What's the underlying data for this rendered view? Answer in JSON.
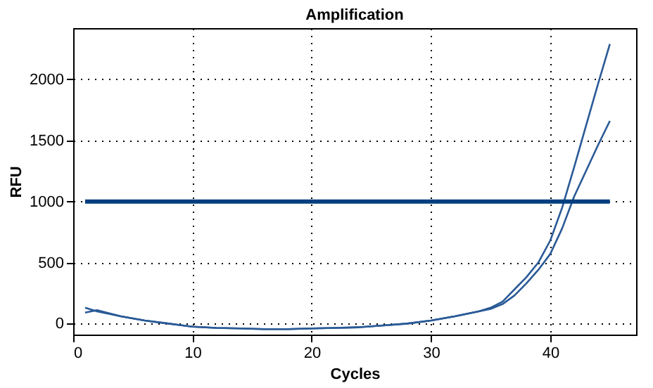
{
  "chart_data": {
    "type": "line",
    "title": "Amplification",
    "xlabel": "Cycles",
    "ylabel": "RFU",
    "xlim": [
      0,
      47.2
    ],
    "xticks": [
      0,
      10,
      20,
      30,
      40
    ],
    "ylim": [
      -90,
      2420
    ],
    "yticks": [
      0,
      500,
      1000,
      1500,
      2000
    ],
    "grid": true,
    "series": [
      {
        "color": "#2a5a96",
        "x": [
          1,
          2,
          4,
          6,
          8,
          10,
          12,
          14,
          16,
          18,
          20,
          22,
          24,
          26,
          28,
          30,
          32,
          34,
          35,
          36,
          37,
          38,
          39,
          40,
          41,
          42,
          43,
          44,
          45
        ],
        "values": [
          130,
          100,
          60,
          25,
          0,
          -25,
          -35,
          -40,
          -45,
          -45,
          -40,
          -35,
          -30,
          -15,
          0,
          25,
          60,
          100,
          130,
          180,
          280,
          380,
          500,
          680,
          950,
          1280,
          1620,
          1960,
          2290
        ]
      },
      {
        "color": "#2a5a96",
        "x": [
          1,
          2,
          4,
          6,
          8,
          10,
          12,
          14,
          16,
          18,
          20,
          22,
          24,
          26,
          28,
          30,
          32,
          34,
          35,
          36,
          37,
          38,
          39,
          40,
          41,
          42,
          43,
          44,
          45
        ],
        "values": [
          90,
          110,
          60,
          25,
          0,
          -25,
          -35,
          -40,
          -45,
          -45,
          -40,
          -35,
          -30,
          -15,
          0,
          25,
          60,
          100,
          120,
          160,
          230,
          330,
          440,
          570,
          780,
          1040,
          1250,
          1460,
          1660
        ]
      },
      {
        "color": "#003f7f",
        "x": [
          1,
          45
        ],
        "values": [
          1000,
          1000
        ]
      }
    ]
  }
}
